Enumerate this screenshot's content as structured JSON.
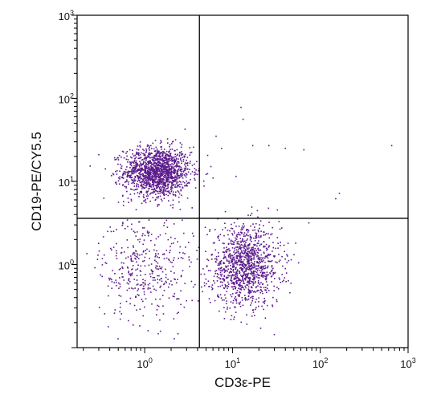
{
  "chart_data": {
    "type": "scatter",
    "title": "",
    "xlabel": "CD3ε-PE",
    "ylabel": "CD19-PE/CY5.5",
    "x_scale": "log",
    "y_scale": "log",
    "xlim": [
      0.17,
      1000
    ],
    "ylim": [
      0.1,
      1000
    ],
    "x_ticks": [
      {
        "base": "10",
        "exp": "0",
        "value": 1
      },
      {
        "base": "10",
        "exp": "1",
        "value": 10
      },
      {
        "base": "10",
        "exp": "2",
        "value": 100
      },
      {
        "base": "10",
        "exp": "3",
        "value": 1000
      }
    ],
    "y_ticks": [
      {
        "base": "10",
        "exp": "0",
        "value": 1
      },
      {
        "base": "10",
        "exp": "1",
        "value": 10
      },
      {
        "base": "10",
        "exp": "2",
        "value": 100
      },
      {
        "base": "10",
        "exp": "3",
        "value": 1000
      }
    ],
    "quadrant_gates": {
      "x": 4.2,
      "y": 3.6
    },
    "point_color": "#5b1a8c",
    "grid": false,
    "series": [
      {
        "clusters": [
          {
            "center": [
              1.4,
              13
            ],
            "spread": [
              0.19,
              0.15
            ],
            "count": 1500
          },
          {
            "center": [
              1.0,
              0.9
            ],
            "spread": [
              0.26,
              0.32
            ],
            "count": 380
          },
          {
            "center": [
              14,
              0.95
            ],
            "spread": [
              0.2,
              0.24
            ],
            "count": 1150
          }
        ],
        "points": [
          [
            12.5,
            78
          ],
          [
            13.2,
            56
          ],
          [
            6.5,
            35
          ],
          [
            7.5,
            25
          ],
          [
            17,
            27
          ],
          [
            26,
            27
          ],
          [
            40,
            25
          ],
          [
            65,
            24
          ],
          [
            650,
            27
          ],
          [
            165,
            7.2
          ],
          [
            150,
            6.2
          ],
          [
            11,
            11.5
          ],
          [
            6,
            11
          ],
          [
            0.3,
            21
          ],
          [
            0.22,
            1.35
          ],
          [
            4.9,
            2.8
          ],
          [
            3.6,
            2.2
          ]
        ]
      }
    ]
  }
}
